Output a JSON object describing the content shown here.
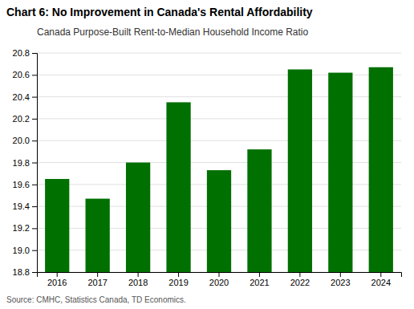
{
  "chart_data": {
    "type": "bar",
    "title": "Chart 6: No Improvement in Canada's Rental Affordability",
    "subtitle": "Canada Purpose-Built Rent-to-Median Household Income Ratio",
    "source": "Source: CMHC, Statistics Canada, TD Economics.",
    "categories": [
      "2016",
      "2017",
      "2018",
      "2019",
      "2020",
      "2021",
      "2022",
      "2023",
      "2024"
    ],
    "values": [
      19.65,
      19.47,
      19.8,
      20.35,
      19.73,
      19.92,
      20.65,
      20.62,
      20.67
    ],
    "color": "#007000",
    "ylim": [
      18.8,
      20.8
    ],
    "yticks": [
      18.8,
      {
        "value": 19.0,
        "label": "19.0"
      },
      19.2,
      19.4,
      19.6,
      19.8,
      {
        "value": 20.0,
        "label": "20.0"
      },
      20.2,
      20.4,
      20.6,
      20.8
    ],
    "grid": true
  }
}
